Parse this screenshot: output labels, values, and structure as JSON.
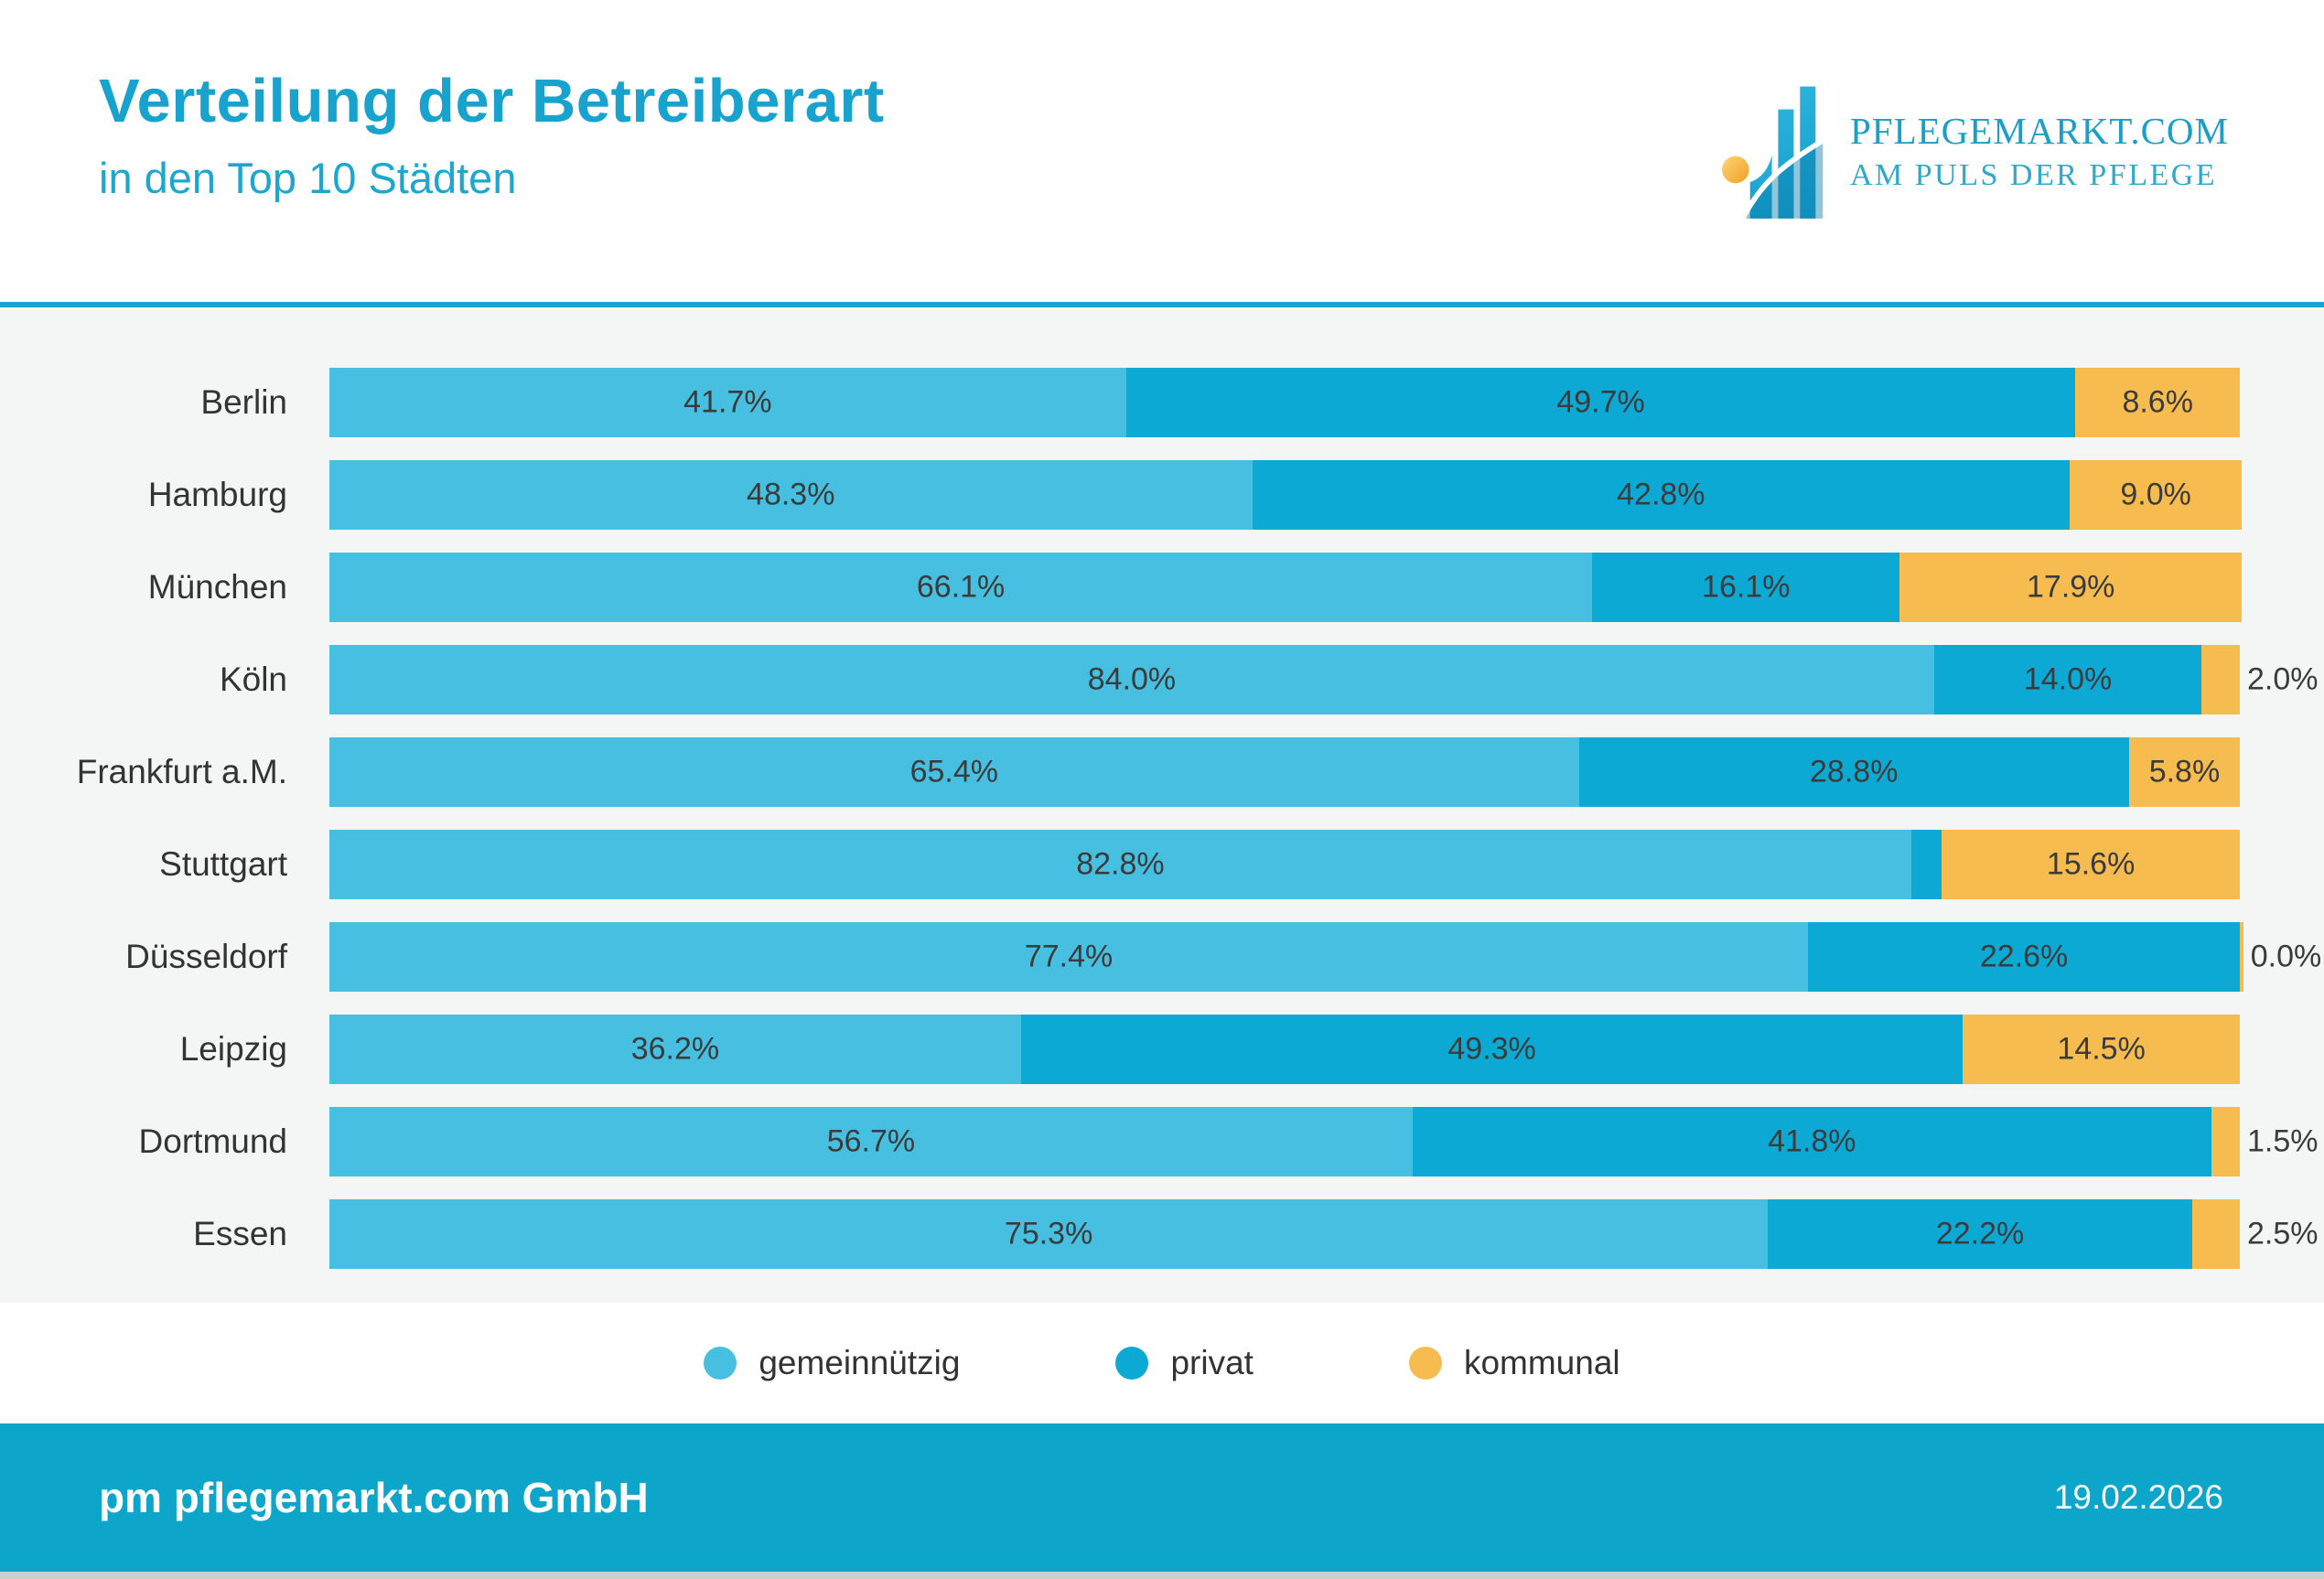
{
  "header": {
    "title": "Verteilung der Betreiberart",
    "subtitle": "in den Top 10 Städten"
  },
  "logo": {
    "brand": "PFLEGEMARKT.COM",
    "tagline": "AM PULS DER PFLEGE"
  },
  "footer": {
    "company": "pm pflegemarkt.com GmbH",
    "date": "19.02.2026"
  },
  "colors": {
    "title": "#17a3cd",
    "divider": "#1ba7cc",
    "chart_background": "#f4f5f5",
    "footer_background": "#0da5c9",
    "label_text": "#3b3b3b",
    "gemeinnuetzig": "#47bfe0",
    "privat": "#0ca9d4",
    "kommunal": "#f7bc4f",
    "logo_orange": "#f5a623"
  },
  "chart_data": {
    "type": "bar",
    "orientation": "horizontal",
    "stacked": true,
    "title": "Verteilung der Betreiberart in den Top 10 Städten",
    "xlabel": "",
    "ylabel": "",
    "xlim": [
      0,
      100
    ],
    "grid": false,
    "legend_position": "bottom",
    "value_suffix": "%",
    "categories": [
      "Berlin",
      "Hamburg",
      "München",
      "Köln",
      "Frankfurt a.M.",
      "Stuttgart",
      "Düsseldorf",
      "Leipzig",
      "Dortmund",
      "Essen"
    ],
    "series": [
      {
        "name": "gemeinnützig",
        "color": "#47bfe0",
        "values": [
          41.7,
          48.3,
          66.1,
          84.0,
          65.4,
          82.8,
          77.4,
          36.2,
          56.7,
          75.3
        ]
      },
      {
        "name": "privat",
        "color": "#0ca9d4",
        "values": [
          49.7,
          42.8,
          16.1,
          14.0,
          28.8,
          1.6,
          22.6,
          49.3,
          41.8,
          22.2
        ]
      },
      {
        "name": "kommunal",
        "color": "#f7bc4f",
        "values": [
          8.6,
          9.0,
          17.9,
          2.0,
          5.8,
          15.6,
          0.0,
          14.5,
          1.5,
          2.5
        ]
      }
    ]
  }
}
